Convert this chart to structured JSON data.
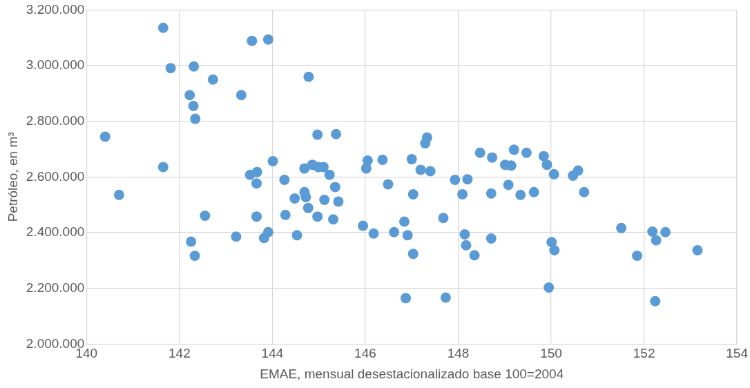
{
  "chart_data": {
    "type": "scatter",
    "xlabel": "EMAE, mensual desestacionalizado base 100=2004",
    "ylabel": "Petróleo, en m³",
    "xlim": [
      140,
      154
    ],
    "xticks": [
      140,
      142,
      144,
      146,
      148,
      150,
      152,
      154
    ],
    "ylim": [
      2000000,
      3200000
    ],
    "yticks": [
      {
        "value": 2000000,
        "label": "2.000.000"
      },
      {
        "value": 2200000,
        "label": "2.200.000"
      },
      {
        "value": 2400000,
        "label": "2.400.000"
      },
      {
        "value": 2600000,
        "label": "2.600.000"
      },
      {
        "value": 2800000,
        "label": "2.800.000"
      },
      {
        "value": 3000000,
        "label": "3.000.000"
      },
      {
        "value": 3200000,
        "label": "3.200.000"
      }
    ],
    "grid": true,
    "legend": false,
    "marker": "circle",
    "series": [
      {
        "color": "#5b9bd5",
        "x": [
          140.4,
          140.7,
          141.65,
          141.65,
          141.81,
          142.22,
          142.31,
          142.3,
          142.34,
          142.25,
          142.33,
          142.55,
          142.72,
          143.22,
          143.33,
          143.56,
          143.91,
          143.52,
          143.67,
          143.66,
          143.66,
          143.82,
          143.91,
          144.01,
          144.26,
          144.28,
          144.48,
          144.53,
          144.69,
          144.69,
          144.72,
          144.77,
          144.78,
          144.86,
          144.99,
          144.97,
          145.1,
          144.97,
          145.12,
          145.23,
          145.31,
          145.37,
          145.35,
          145.42,
          145.95,
          146.02,
          146.05,
          146.18,
          146.37,
          146.49,
          146.62,
          146.84,
          146.91,
          146.87,
          147.0,
          147.03,
          147.03,
          147.19,
          147.29,
          147.33,
          147.4,
          147.68,
          147.73,
          147.93,
          148.09,
          148.14,
          148.17,
          148.2,
          148.35,
          148.47,
          148.71,
          148.71,
          148.73,
          149.01,
          149.08,
          149.14,
          149.2,
          149.34,
          149.47,
          149.63,
          149.84,
          149.91,
          149.95,
          150.01,
          150.07,
          150.06,
          150.47,
          150.58,
          150.71,
          151.51,
          151.85,
          152.18,
          152.26,
          152.24,
          152.46,
          153.15
        ],
        "values": [
          2745000,
          2536000,
          3136000,
          2636000,
          2991000,
          2894000,
          2997000,
          2855000,
          2809000,
          2368000,
          2317000,
          2461000,
          2950000,
          2386000,
          2894000,
          3089000,
          3094000,
          2608000,
          2618000,
          2577000,
          2458000,
          2381000,
          2402000,
          2657000,
          2590000,
          2464000,
          2523000,
          2391000,
          2631000,
          2546000,
          2528000,
          2489000,
          2960000,
          2644000,
          2636000,
          2752000,
          2636000,
          2458000,
          2518000,
          2608000,
          2448000,
          2754000,
          2564000,
          2512000,
          2425000,
          2631000,
          2659000,
          2397000,
          2662000,
          2574000,
          2402000,
          2440000,
          2391000,
          2165000,
          2664000,
          2538000,
          2324000,
          2626000,
          2721000,
          2742000,
          2621000,
          2453000,
          2167000,
          2590000,
          2538000,
          2394000,
          2355000,
          2592000,
          2319000,
          2687000,
          2541000,
          2379000,
          2670000,
          2644000,
          2572000,
          2641000,
          2698000,
          2536000,
          2687000,
          2546000,
          2675000,
          2644000,
          2203000,
          2366000,
          2337000,
          2610000,
          2605000,
          2623000,
          2546000,
          2417000,
          2317000,
          2404000,
          2373000,
          2154000,
          2402000,
          2337000
        ]
      }
    ]
  }
}
